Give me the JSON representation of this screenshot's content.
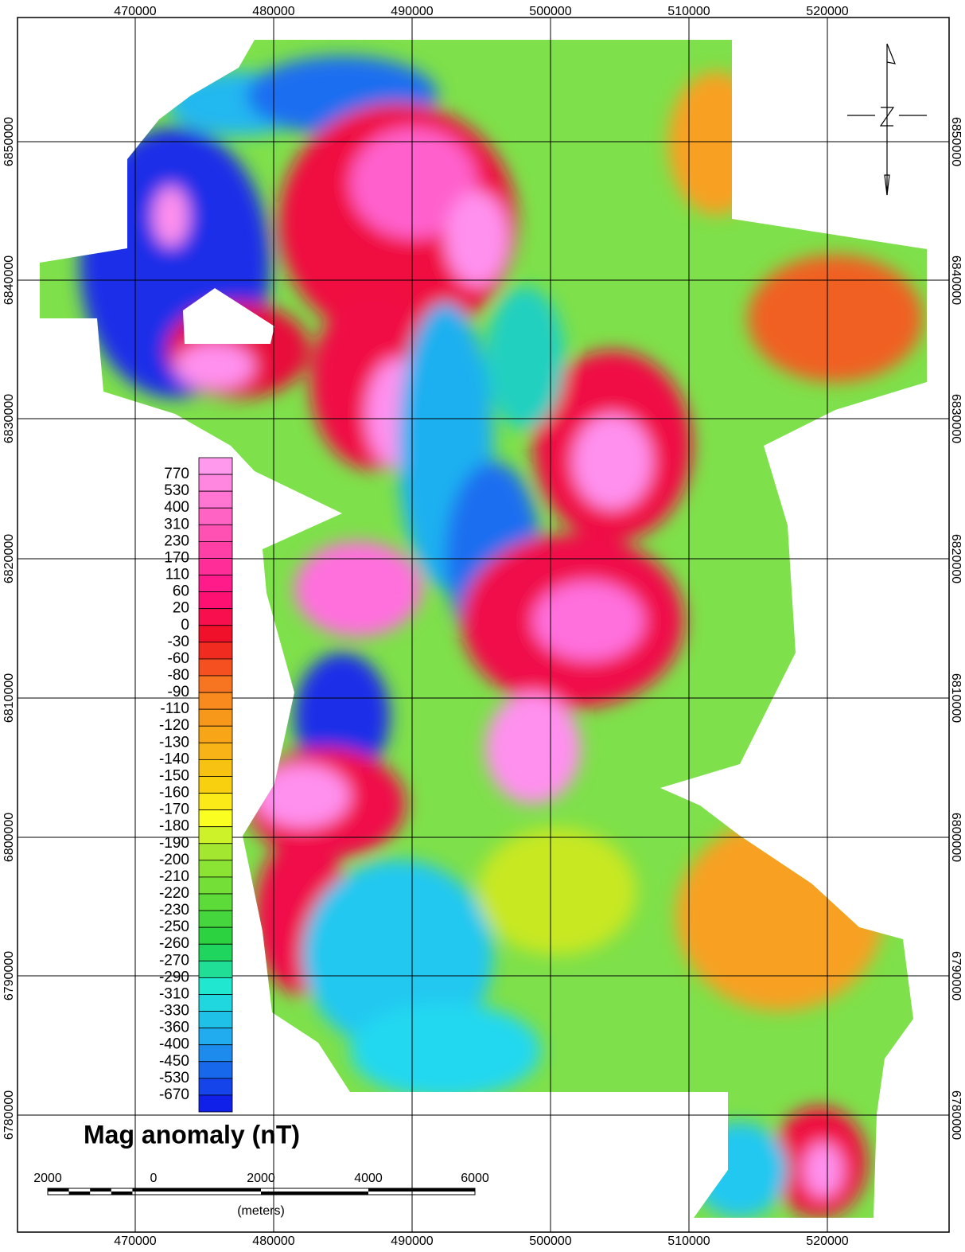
{
  "map": {
    "x_labels": [
      "470000",
      "480000",
      "490000",
      "500000",
      "510000",
      "520000"
    ],
    "y_labels": [
      "6850000",
      "6840000",
      "6830000",
      "6820000",
      "6810000",
      "6800000",
      "6790000",
      "6780000"
    ],
    "legend": {
      "title": "Mag anomaly (nT)",
      "levels": [
        "770",
        "530",
        "400",
        "310",
        "230",
        "170",
        "110",
        "60",
        "20",
        "0",
        "-30",
        "-60",
        "-80",
        "-90",
        "-110",
        "-120",
        "-130",
        "-140",
        "-150",
        "-160",
        "-170",
        "-180",
        "-190",
        "-200",
        "-210",
        "-220",
        "-230",
        "-250",
        "-260",
        "-270",
        "-290",
        "-310",
        "-330",
        "-360",
        "-400",
        "-450",
        "-530",
        "-670"
      ]
    },
    "scale_bar": {
      "labels": [
        "2000",
        "0",
        "2000",
        "4000",
        "6000"
      ],
      "unit": "(meters)"
    }
  }
}
